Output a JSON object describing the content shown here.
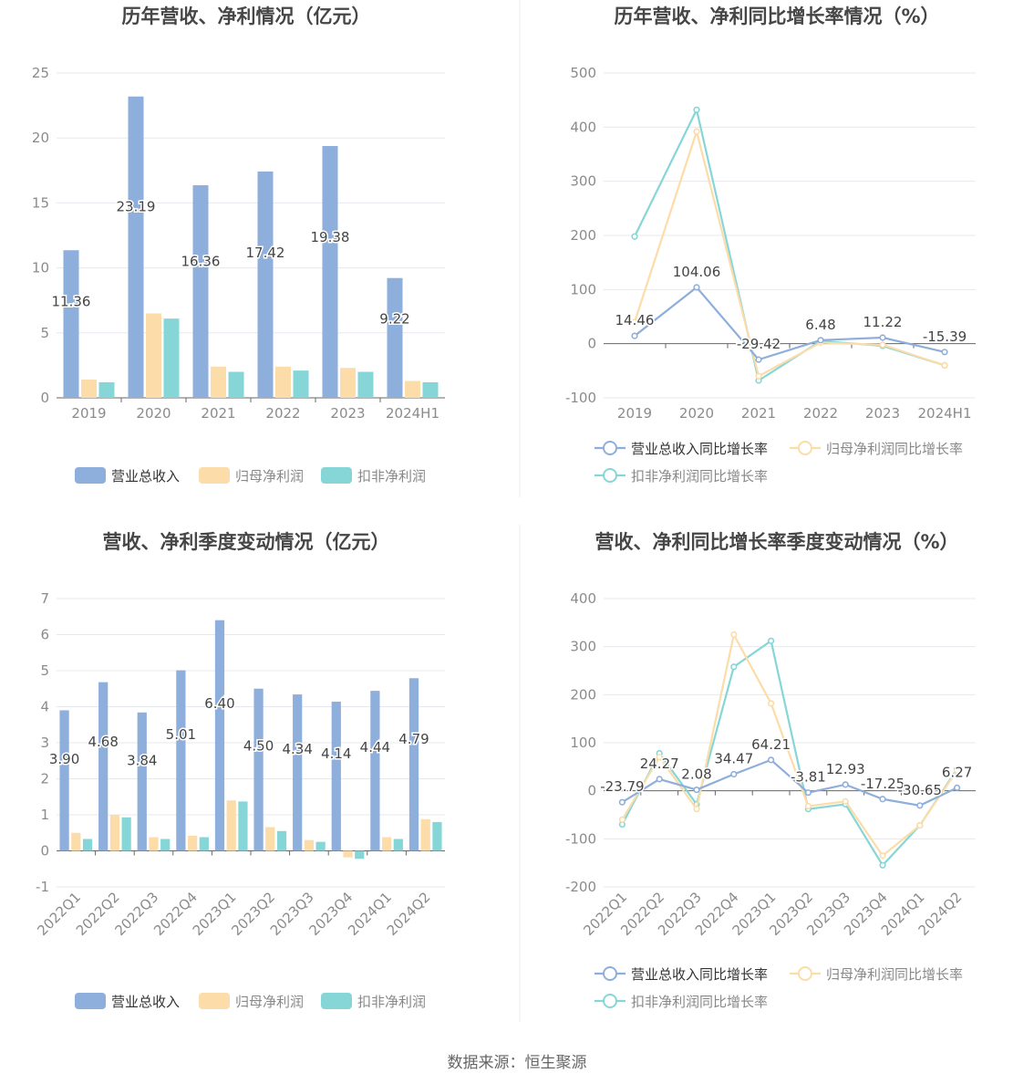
{
  "footer": "数据来源：恒生聚源",
  "colors": {
    "revenue": "#8eaedc",
    "net": "#fcdca8",
    "deducted": "#86d6d8",
    "grid": "#e6e8ef",
    "axis": "#666666",
    "tick": "#8b8b8b",
    "title": "#464646",
    "label": "#444444"
  },
  "chart_data": [
    {
      "type": "bar",
      "title": "历年营收、净利情况（亿元）",
      "categories": [
        "2019",
        "2020",
        "2021",
        "2022",
        "2023",
        "2024H1"
      ],
      "ylim": [
        0,
        25
      ],
      "yticks": [
        0,
        5,
        10,
        15,
        20,
        25
      ],
      "legend": "bottom",
      "grid": true,
      "series": [
        {
          "name": "营业总收入",
          "values": [
            11.36,
            23.19,
            16.36,
            17.42,
            19.38,
            9.22
          ],
          "labels": [
            "11.36",
            "23.19",
            "16.36",
            "17.42",
            "19.38",
            "9.22"
          ]
        },
        {
          "name": "归母净利润",
          "values": [
            1.4,
            6.5,
            2.4,
            2.4,
            2.3,
            1.3
          ]
        },
        {
          "name": "扣非净利润",
          "values": [
            1.2,
            6.1,
            2.0,
            2.1,
            2.0,
            1.2
          ]
        }
      ]
    },
    {
      "type": "line",
      "title": "历年营收、净利同比增长率情况（%）",
      "categories": [
        "2019",
        "2020",
        "2021",
        "2022",
        "2023",
        "2024H1"
      ],
      "ylim": [
        -100,
        500
      ],
      "yticks": [
        -100,
        0,
        100,
        200,
        300,
        400,
        500
      ],
      "legend": "bottom",
      "grid": true,
      "series": [
        {
          "name": "营业总收入同比增长率",
          "values": [
            14.46,
            104.06,
            -29.42,
            6.48,
            11.22,
            -15.39
          ],
          "labels": [
            "14.46",
            "104.06",
            "-29.42",
            "6.48",
            "11.22",
            "-15.39"
          ]
        },
        {
          "name": "归母净利润同比增长率",
          "values": [
            40,
            392,
            -60,
            2,
            -2,
            -40
          ]
        },
        {
          "name": "扣非净利润同比增长率",
          "values": [
            198,
            432,
            -68,
            5,
            -4,
            -40
          ]
        }
      ]
    },
    {
      "type": "bar",
      "title": "营收、净利季度变动情况（亿元）",
      "categories": [
        "2022Q1",
        "2022Q2",
        "2022Q3",
        "2022Q4",
        "2023Q1",
        "2023Q2",
        "2023Q3",
        "2023Q4",
        "2024Q1",
        "2024Q2"
      ],
      "ylim": [
        -1,
        7
      ],
      "yticks": [
        -1,
        0,
        1,
        2,
        3,
        4,
        5,
        6,
        7
      ],
      "legend": "bottom",
      "grid": true,
      "series": [
        {
          "name": "营业总收入",
          "values": [
            3.9,
            4.68,
            3.84,
            5.01,
            6.4,
            4.5,
            4.34,
            4.14,
            4.44,
            4.79
          ],
          "labels": [
            "3.90",
            "4.68",
            "3.84",
            "5.01",
            "6.40",
            "4.50",
            "4.34",
            "4.14",
            "4.44",
            "4.79"
          ]
        },
        {
          "name": "归母净利润",
          "values": [
            0.5,
            1.0,
            0.38,
            0.42,
            1.4,
            0.66,
            0.3,
            -0.18,
            0.38,
            0.88
          ]
        },
        {
          "name": "扣非净利润",
          "values": [
            0.33,
            0.93,
            0.33,
            0.38,
            1.37,
            0.55,
            0.25,
            -0.22,
            0.33,
            0.8
          ]
        }
      ]
    },
    {
      "type": "line",
      "title": "营收、净利同比增长率季度变动情况（%）",
      "categories": [
        "2022Q1",
        "2022Q2",
        "2022Q3",
        "2022Q4",
        "2023Q1",
        "2023Q2",
        "2023Q3",
        "2023Q4",
        "2024Q1",
        "2024Q2"
      ],
      "ylim": [
        -200,
        400
      ],
      "yticks": [
        -200,
        -100,
        0,
        100,
        200,
        300,
        400
      ],
      "legend": "bottom",
      "grid": true,
      "series": [
        {
          "name": "营业总收入同比增长率",
          "values": [
            -23.79,
            24.27,
            2.08,
            34.47,
            64.21,
            -3.81,
            12.93,
            -17.25,
            -30.65,
            6.27
          ],
          "labels": [
            "-23.79",
            "24.27",
            "2.08",
            "34.47",
            "64.21",
            "-3.81",
            "12.93",
            "-17.25",
            "-30.65",
            "6.27"
          ]
        },
        {
          "name": "归母净利润同比增长率",
          "values": [
            -60,
            70,
            -38,
            325,
            182,
            -32,
            -22,
            -135,
            -72,
            42
          ]
        },
        {
          "name": "扣非净利润同比增长率",
          "values": [
            -70,
            78,
            -28,
            258,
            312,
            -38,
            -28,
            -155,
            -72,
            45
          ]
        }
      ]
    }
  ]
}
